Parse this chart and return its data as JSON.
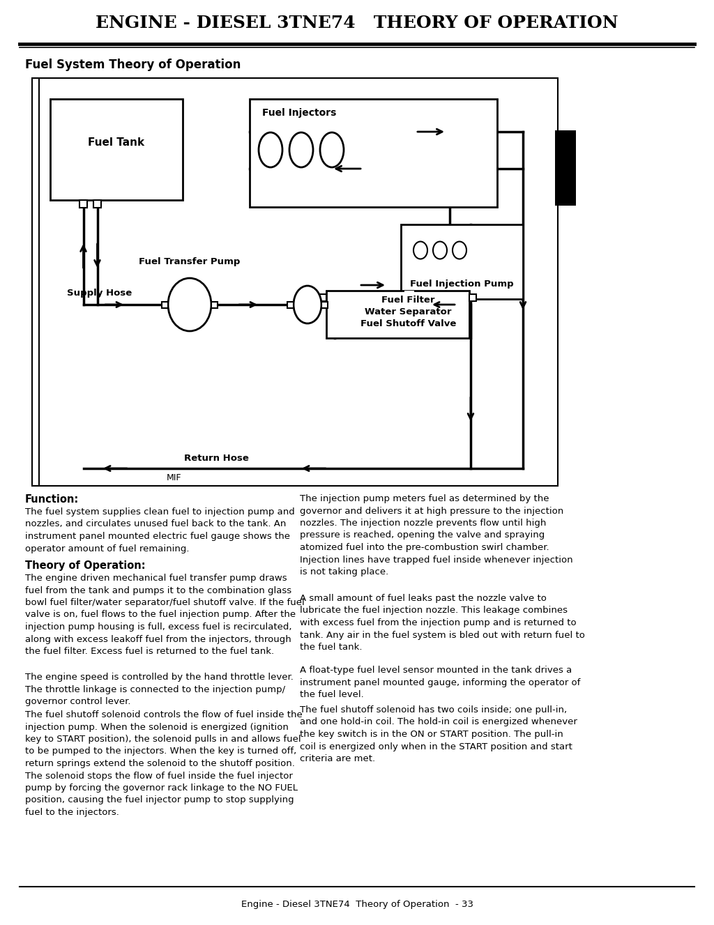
{
  "title": "ENGINE - DIESEL 3TNE74   THEORY OF OPERATION",
  "section_title": "Fuel System Theory of Operation",
  "footer": "Engine - Diesel 3TNE74  Theory of Operation  - 33",
  "bg": "#ffffff",
  "fg": "#000000",
  "function_title": "Function:",
  "function_text": "The fuel system supplies clean fuel to injection pump and\nnozzles, and circulates unused fuel back to the tank. An\ninstrument panel mounted electric fuel gauge shows the\noperator amount of fuel remaining.",
  "theory_title": "Theory of Operation:",
  "theory_p1": "The engine driven mechanical fuel transfer pump draws\nfuel from the tank and pumps it to the combination glass\nbowl fuel filter/water separator/fuel shutoff valve. If the fuel\nvalve is on, fuel flows to the fuel injection pump. After the\ninjection pump housing is full, excess fuel is recirculated,\nalong with excess leakoff fuel from the injectors, through\nthe fuel filter. Excess fuel is returned to the fuel tank.",
  "theory_p2": "The engine speed is controlled by the hand throttle lever.\nThe throttle linkage is connected to the injection pump/\ngovernor control lever.",
  "theory_p3": "The fuel shutoff solenoid controls the flow of fuel inside the\ninjection pump. When the solenoid is energized (ignition\nkey to START position), the solenoid pulls in and allows fuel\nto be pumped to the injectors. When the key is turned off,\nreturn springs extend the solenoid to the shutoff position.\nThe solenoid stops the flow of fuel inside the fuel injector\npump by forcing the governor rack linkage to the NO FUEL\nposition, causing the fuel injector pump to stop supplying\nfuel to the injectors.",
  "right_p1": "The injection pump meters fuel as determined by the\ngovernor and delivers it at high pressure to the injection\nnozzles. The injection nozzle prevents flow until high\npressure is reached, opening the valve and spraying\natomized fuel into the pre-combustion swirl chamber.\nInjection lines have trapped fuel inside whenever injection\nis not taking place.",
  "right_p2": "A small amount of fuel leaks past the nozzle valve to\nlubricate the fuel injection nozzle. This leakage combines\nwith excess fuel from the injection pump and is returned to\ntank. Any air in the fuel system is bled out with return fuel to\nthe fuel tank.",
  "right_p3": "A float-type fuel level sensor mounted in the tank drives a\ninstrument panel mounted gauge, informing the operator of\nthe fuel level.",
  "right_p4": "The fuel shutoff solenoid has two coils inside; one pull-in,\nand one hold-in coil. The hold-in coil is energized whenever\nthe key switch is in the ON or START position. The pull-in\ncoil is energized only when in the START position and start\ncriteria are met.",
  "mif": "MIF"
}
